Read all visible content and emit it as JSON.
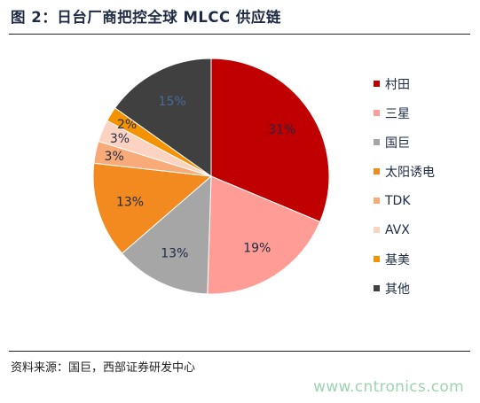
{
  "title": "图 2：日台厂商把控全球 MLCC 供应链",
  "source": "资料来源：国巨，西部证券研发中心",
  "watermark": "www.cntronics.com",
  "chart_data": {
    "type": "pie",
    "title": "",
    "legend_position": "right",
    "slices": [
      {
        "name": "村田",
        "value": 31,
        "label": "31%",
        "color": "#c00000",
        "label_color": "#1f2a44"
      },
      {
        "name": "三星",
        "value": 19,
        "label": "19%",
        "color": "#ff9c96",
        "label_color": "#1f2a44"
      },
      {
        "name": "国巨",
        "value": 13,
        "label": "13%",
        "color": "#a6a6a6",
        "label_color": "#1f2a44"
      },
      {
        "name": "太阳诱电",
        "value": 13,
        "label": "13%",
        "color": "#f28a20",
        "label_color": "#1f2a44"
      },
      {
        "name": "TDK",
        "value": 3,
        "label": "3%",
        "color": "#f8aa78",
        "label_color": "#1f2a44"
      },
      {
        "name": "AVX",
        "value": 3,
        "label": "3%",
        "color": "#fcd3c0",
        "label_color": "#1f2a44"
      },
      {
        "name": "基美",
        "value": 2,
        "label": "2%",
        "color": "#f59200",
        "label_color": "#1f2a44"
      },
      {
        "name": "其他",
        "value": 15,
        "label": "15%",
        "color": "#404040",
        "label_color": "#4a6a9a"
      }
    ]
  }
}
